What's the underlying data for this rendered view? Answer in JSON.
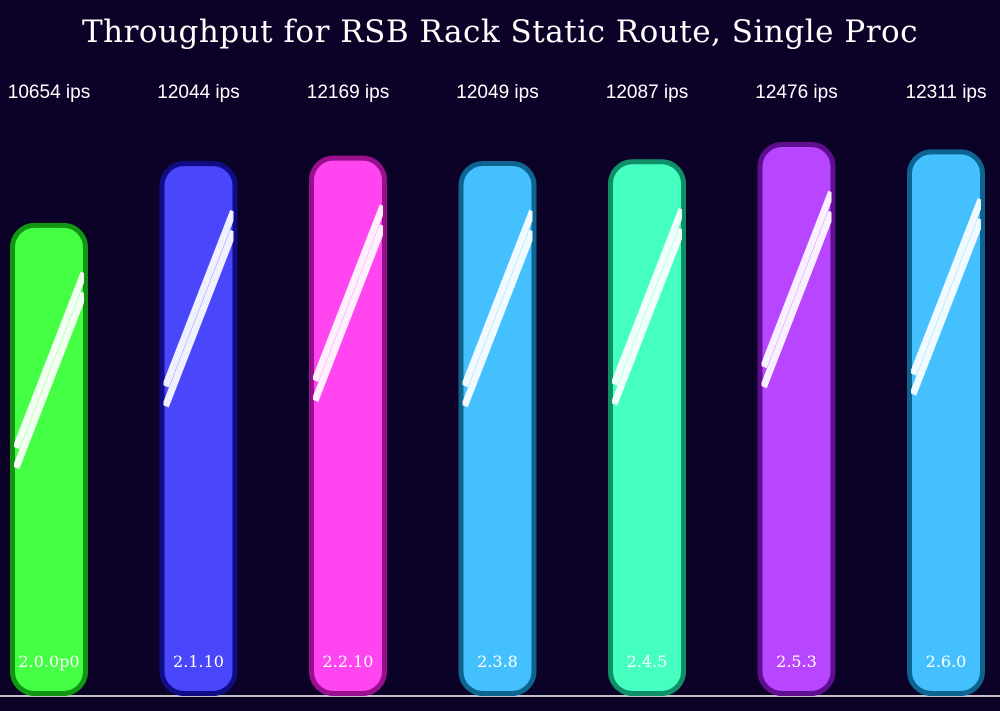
{
  "chart_data": {
    "type": "bar",
    "title": "Throughput for RSB Rack Static Route, Single Proc",
    "xlabel": "",
    "ylabel": "",
    "value_suffix": " ips",
    "categories": [
      "2.0.0p0",
      "2.1.10",
      "2.2.10",
      "2.3.8",
      "2.4.5",
      "2.5.3",
      "2.6.0"
    ],
    "values": [
      10654,
      12044,
      12169,
      12049,
      12087,
      12476,
      12311
    ],
    "colors": [
      {
        "fill": "#44ff44",
        "border": "#129512"
      },
      {
        "fill": "#4a46fb",
        "border": "#100c86"
      },
      {
        "fill": "#ff44f0",
        "border": "#98108e"
      },
      {
        "fill": "#44c0ff",
        "border": "#0e6490"
      },
      {
        "fill": "#44ffc0",
        "border": "#0f8f68"
      },
      {
        "fill": "#b845ff",
        "border": "#600e90"
      },
      {
        "fill": "#44c0ff",
        "border": "#0e6490"
      }
    ],
    "ylim": [
      0,
      12476
    ],
    "grid": false,
    "legend": "none"
  }
}
